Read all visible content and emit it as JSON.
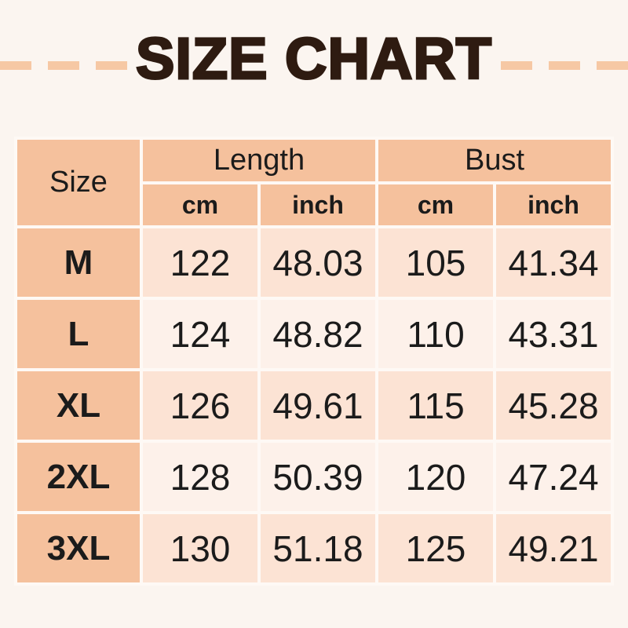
{
  "title": {
    "text": "SIZE CHART"
  },
  "colors": {
    "page_background": "#fbf5f0",
    "dash": "#f6c8a4",
    "title_text": "#2e1b11",
    "header_cell": "#f5c19d",
    "row_odd": "#fce3d4",
    "row_even": "#fdf1ea",
    "grid_line": "#fef9f5",
    "cell_text": "#1b1b1b"
  },
  "chart_data": {
    "type": "table",
    "title": "SIZE CHART",
    "corner_header": "Size",
    "column_groups": [
      {
        "label": "Size",
        "span": 1
      },
      {
        "label": "Length",
        "span": 2
      },
      {
        "label": "Bust",
        "span": 2
      }
    ],
    "sub_headers": [
      "cm",
      "inch",
      "cm",
      "inch"
    ],
    "rows": [
      {
        "size": "M",
        "values": [
          "122",
          "48.03",
          "105",
          "41.34"
        ]
      },
      {
        "size": "L",
        "values": [
          "124",
          "48.82",
          "110",
          "43.31"
        ]
      },
      {
        "size": "XL",
        "values": [
          "126",
          "49.61",
          "115",
          "45.28"
        ]
      },
      {
        "size": "2XL",
        "values": [
          "128",
          "50.39",
          "120",
          "47.24"
        ]
      },
      {
        "size": "3XL",
        "values": [
          "130",
          "51.18",
          "125",
          "49.21"
        ]
      }
    ]
  }
}
